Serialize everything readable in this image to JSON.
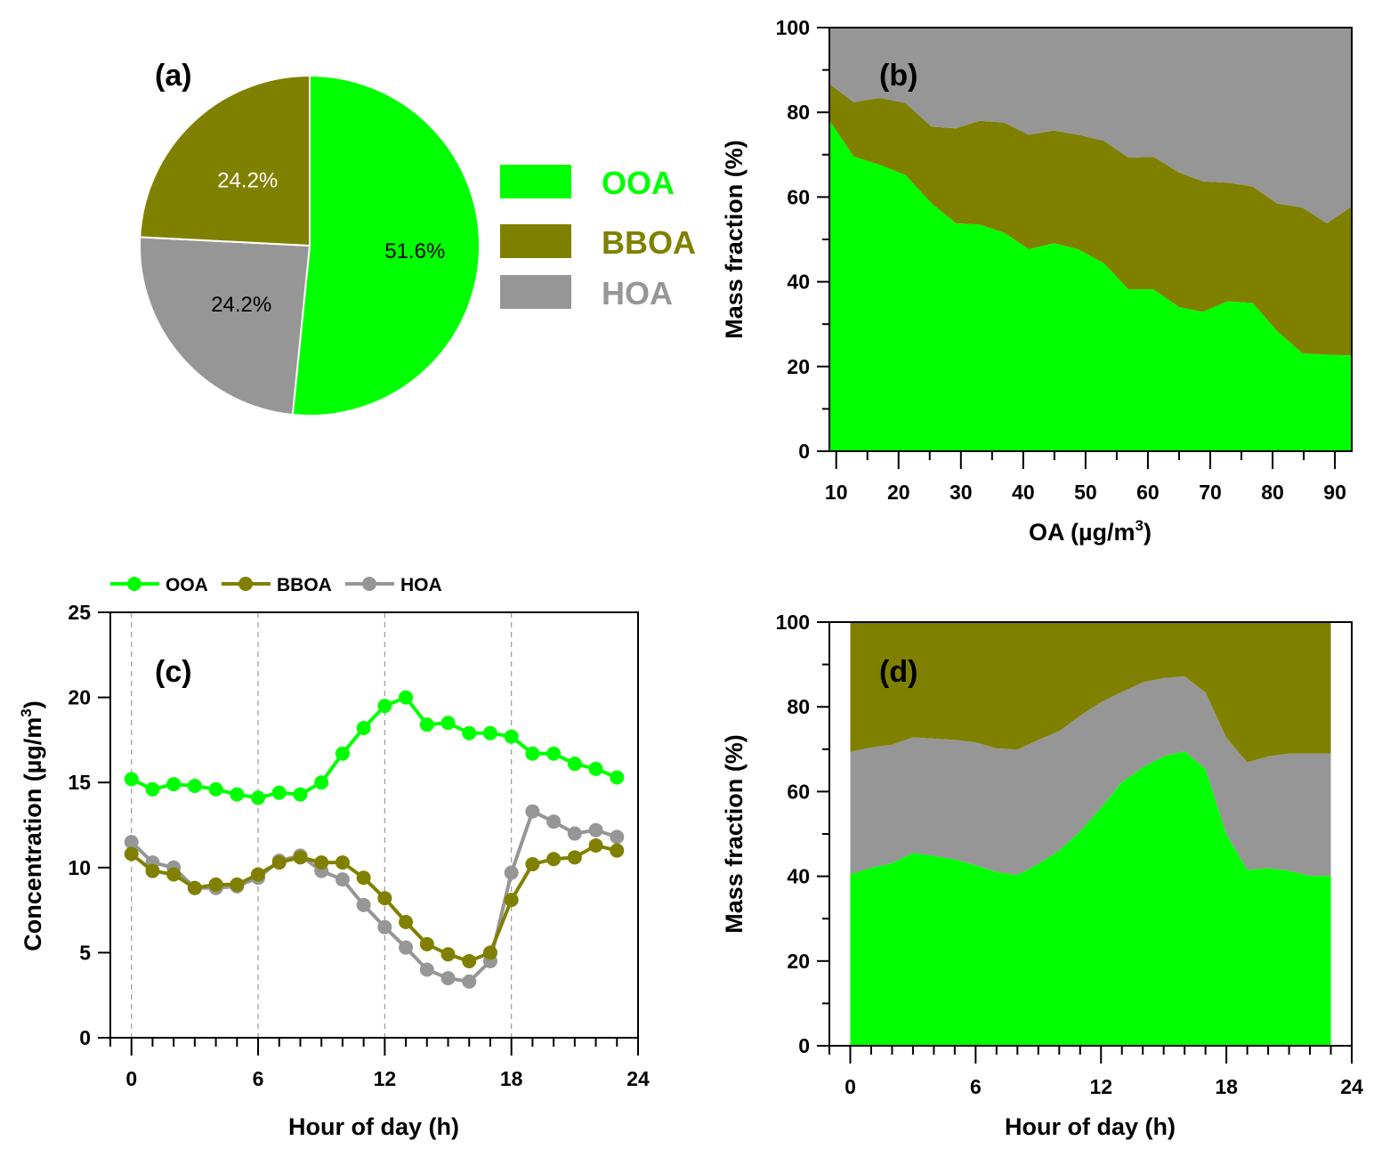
{
  "colors": {
    "OOA": "#00ff00",
    "BBOA": "#808000",
    "HOA": "#969696",
    "axis": "#000000",
    "grid": "#999999"
  },
  "chart_data": [
    {
      "id": "a",
      "type": "pie",
      "panel_label": "(a)",
      "categories": [
        "OOA",
        "HOA",
        "BBOA"
      ],
      "values": [
        51.6,
        24.2,
        24.2
      ],
      "labels": [
        "51.6%",
        "24.2%",
        "24.2%"
      ],
      "label_colors": [
        "#000000",
        "#000000",
        "#ffffff"
      ],
      "legend": {
        "entries": [
          "OOA",
          "BBOA",
          "HOA"
        ],
        "placement": "right"
      },
      "start": "12 o'clock, clockwise"
    },
    {
      "id": "b",
      "type": "area",
      "stacked": true,
      "panel_label": "(b)",
      "xlabel": "OA (µg/m³)",
      "xlabel_parts": {
        "main": "OA (µg/m",
        "sup": "3",
        "end": ")"
      },
      "ylabel": "Mass fraction (%)",
      "xlim": [
        8.9,
        92.7
      ],
      "ylim": [
        0,
        100
      ],
      "xticks": [
        10,
        20,
        30,
        40,
        50,
        60,
        70,
        80,
        90
      ],
      "yticks": [
        0,
        20,
        40,
        60,
        80,
        100
      ],
      "x": [
        8.9,
        12.8,
        17.0,
        21.1,
        25.3,
        29.2,
        33.0,
        36.9,
        40.9,
        44.9,
        48.8,
        52.9,
        56.9,
        60.9,
        65.0,
        68.8,
        72.8,
        76.8,
        80.7,
        84.8,
        88.7,
        92.7
      ],
      "series": [
        {
          "name": "OOA",
          "values": [
            78.1,
            69.6,
            67.6,
            65.2,
            58.5,
            53.8,
            53.5,
            51.6,
            47.7,
            49.1,
            47.7,
            44.4,
            38.2,
            38.2,
            34.0,
            32.9,
            35.4,
            35.0,
            28.4,
            23.1,
            22.8,
            22.6
          ]
        },
        {
          "name": "BBOA",
          "values": [
            8.6,
            12.8,
            15.8,
            17.0,
            18.1,
            22.4,
            24.5,
            26.0,
            27.0,
            26.6,
            27.0,
            28.9,
            31.1,
            31.3,
            31.8,
            30.8,
            28.0,
            27.5,
            30.1,
            34.4,
            31.0,
            35.2
          ]
        },
        {
          "name": "HOA",
          "values": [
            13.3,
            17.6,
            16.6,
            17.8,
            23.4,
            23.8,
            22.0,
            22.4,
            25.3,
            24.3,
            25.3,
            26.7,
            30.7,
            30.5,
            34.2,
            36.3,
            36.6,
            37.5,
            41.5,
            42.5,
            46.2,
            42.2
          ]
        }
      ]
    },
    {
      "id": "c",
      "type": "line",
      "panel_label": "(c)",
      "xlabel": "Hour of day (h)",
      "ylabel": "Concentration (µg/m³)",
      "ylabel_parts": {
        "main": "Concentration (µg/m",
        "sup": "3",
        "end": ")"
      },
      "xlim": [
        -1,
        24
      ],
      "ylim": [
        0,
        25
      ],
      "xticks": [
        0,
        6,
        12,
        18,
        24
      ],
      "yticks": [
        0,
        5,
        10,
        15,
        20,
        25
      ],
      "vlines": [
        0,
        6,
        12,
        18
      ],
      "legend": {
        "entries": [
          "OOA",
          "BBOA",
          "HOA"
        ],
        "placement": "top"
      },
      "x": [
        0,
        1,
        2,
        3,
        4,
        5,
        6,
        7,
        8,
        9,
        10,
        11,
        12,
        13,
        14,
        15,
        16,
        17,
        18,
        19,
        20,
        21,
        22,
        23
      ],
      "series": [
        {
          "name": "OOA",
          "values": [
            15.2,
            14.6,
            14.9,
            14.8,
            14.6,
            14.3,
            14.1,
            14.4,
            14.3,
            15.0,
            16.7,
            18.2,
            19.5,
            20.0,
            18.4,
            18.5,
            17.9,
            17.9,
            17.7,
            16.7,
            16.7,
            16.1,
            15.8,
            15.3
          ]
        },
        {
          "name": "BBOA",
          "values": [
            10.8,
            9.8,
            9.6,
            8.8,
            9.0,
            9.0,
            9.6,
            10.3,
            10.6,
            10.3,
            10.3,
            9.4,
            8.2,
            6.8,
            5.5,
            4.9,
            4.5,
            5.0,
            8.1,
            10.2,
            10.5,
            10.6,
            11.3,
            11.0
          ]
        },
        {
          "name": "HOA",
          "values": [
            11.5,
            10.3,
            10.0,
            8.8,
            8.8,
            8.9,
            9.4,
            10.4,
            10.7,
            9.8,
            9.3,
            7.8,
            6.5,
            5.3,
            4.0,
            3.5,
            3.3,
            4.5,
            9.7,
            13.3,
            12.7,
            12.0,
            12.2,
            11.8
          ]
        }
      ]
    },
    {
      "id": "d",
      "type": "area",
      "stacked": true,
      "panel_label": "(d)",
      "xlabel": "Hour of day (h)",
      "ylabel": "Mass fraction (%)",
      "xlim": [
        -1,
        24
      ],
      "ylim": [
        0,
        100
      ],
      "xticks": [
        0,
        6,
        12,
        18,
        24
      ],
      "yticks": [
        0,
        20,
        40,
        60,
        80,
        100
      ],
      "x": [
        0,
        1,
        2,
        3,
        4,
        5,
        6,
        7,
        8,
        9,
        10,
        11,
        12,
        13,
        14,
        15,
        16,
        17,
        18,
        19,
        20,
        21,
        22,
        23
      ],
      "series": [
        {
          "name": "OOA",
          "values": [
            40.5,
            42.0,
            43.1,
            45.5,
            44.8,
            44.0,
            42.6,
            41.0,
            40.3,
            42.9,
            46.1,
            50.6,
            56.2,
            62.2,
            65.7,
            68.3,
            69.5,
            65.3,
            49.9,
            41.5,
            41.9,
            41.3,
            40.1,
            40.1
          ]
        },
        {
          "name": "HOA",
          "values": [
            28.9,
            28.4,
            28.0,
            27.3,
            27.7,
            28.2,
            29.0,
            29.2,
            29.6,
            29.3,
            28.2,
            27.3,
            24.9,
            21.3,
            20.1,
            18.5,
            17.7,
            18.1,
            22.8,
            25.4,
            26.4,
            27.7,
            28.9,
            28.9
          ]
        },
        {
          "name": "BBOA",
          "values": [
            30.6,
            29.6,
            28.9,
            27.2,
            27.5,
            27.8,
            28.4,
            29.8,
            30.1,
            27.8,
            25.7,
            22.1,
            18.9,
            16.5,
            14.2,
            13.2,
            12.8,
            16.6,
            27.3,
            33.1,
            31.7,
            31.0,
            31.0,
            31.0
          ]
        }
      ]
    }
  ]
}
